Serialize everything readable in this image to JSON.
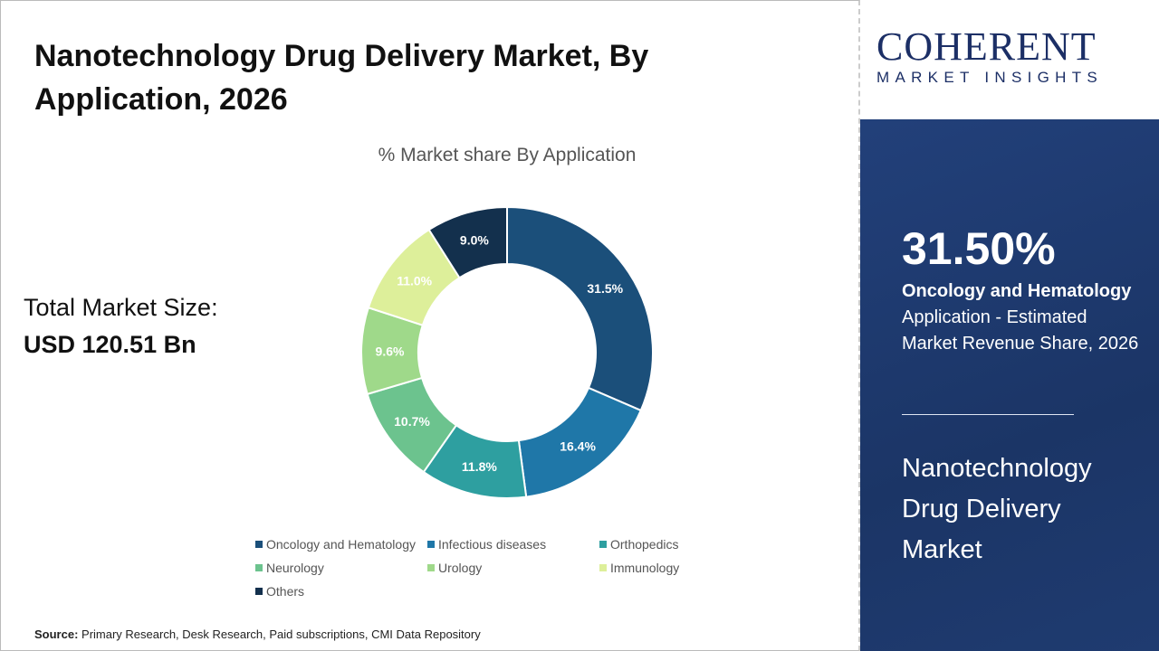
{
  "title": "Nanotechnology Drug Delivery Market, By Application, 2026",
  "total_label": "Total Market Size:",
  "total_value": "USD 120.51 Bn",
  "source_label": "Source:",
  "source_text": " Primary Research, Desk Research, Paid subscriptions, CMI Data Repository",
  "logo": {
    "top": "COHERENT",
    "bottom": "MARKET INSIGHTS"
  },
  "panel": {
    "pct": "31.50%",
    "desc_bold": "Oncology and Hematology",
    "desc_rest": " Application - Estimated Market Revenue Share, 2026",
    "market": "Nanotechnology Drug Delivery Market"
  },
  "chart_data": {
    "type": "pie",
    "variant": "donut",
    "title": "% Market share By Application",
    "categories": [
      "Oncology and Hematology",
      "Infectious diseases",
      "Orthopedics",
      "Neurology",
      "Urology",
      "Immunology",
      "Others"
    ],
    "values": [
      31.5,
      16.4,
      11.8,
      10.7,
      9.6,
      11.0,
      9.0
    ],
    "labels": [
      "31.5%",
      "16.4%",
      "11.8%",
      "10.7%",
      "9.6%",
      "11.0%",
      "9.0%"
    ],
    "colors": [
      "#1b4f7a",
      "#1f77a8",
      "#2e9fa0",
      "#6cc38e",
      "#9fd98a",
      "#ddef9a",
      "#13304d"
    ],
    "legend_position": "bottom"
  }
}
